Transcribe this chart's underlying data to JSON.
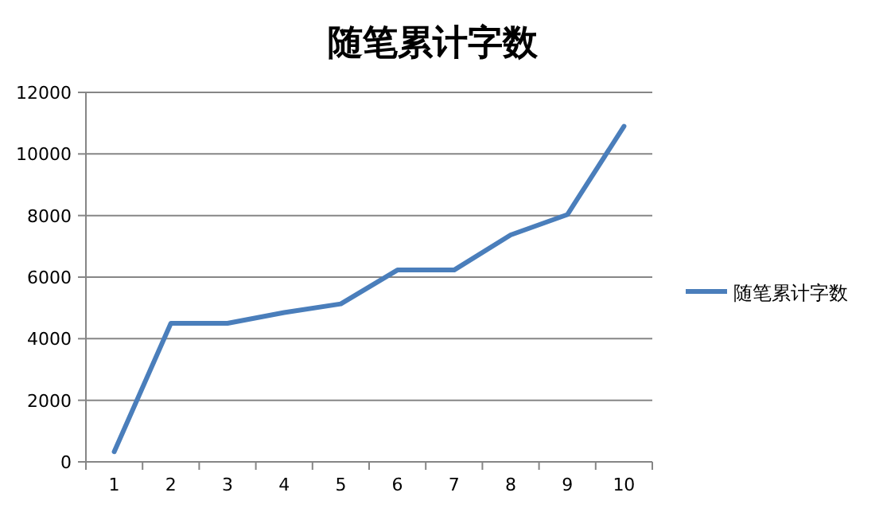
{
  "chart_data": {
    "type": "line",
    "title": "随笔累计字数",
    "categories": [
      "1",
      "2",
      "3",
      "4",
      "5",
      "6",
      "7",
      "8",
      "9",
      "10"
    ],
    "series": [
      {
        "name": "随笔累计字数",
        "color": "#4a7ebb",
        "values": [
          330,
          4500,
          4500,
          4850,
          5130,
          6230,
          6230,
          7370,
          8030,
          10900
        ]
      }
    ],
    "ylim": [
      0,
      12000
    ],
    "yticks": [
      0,
      2000,
      4000,
      6000,
      8000,
      10000,
      12000
    ],
    "grid": "y",
    "legend": "right",
    "marker": "none",
    "line_style": "solid"
  }
}
